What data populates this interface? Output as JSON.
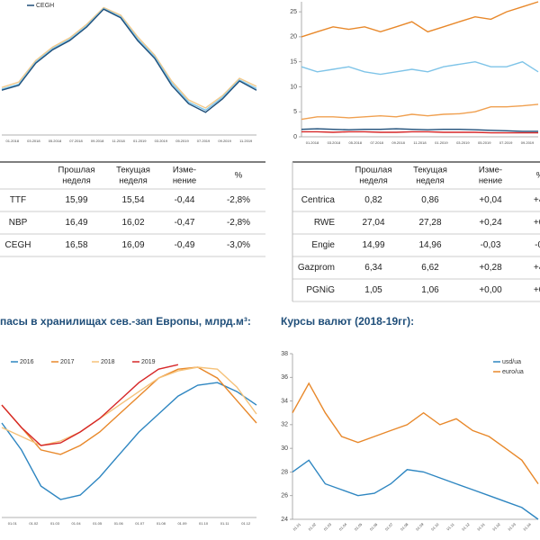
{
  "chart_data": [
    {
      "type": "line",
      "ylim": [
        5,
        30
      ],
      "xtick_labels": [
        "01.2018",
        "03.2018",
        "05.2018",
        "07.2018",
        "09.2018",
        "11.2018",
        "01.2019",
        "03.2019",
        "05.2019",
        "07.2019",
        "09.2019",
        "11.2019"
      ],
      "series": [
        {
          "color": "#f2c98a",
          "values": [
            13.8,
            14.8,
            18.8,
            21.3,
            23,
            25.5,
            28.6,
            27.2,
            23.2,
            19.8,
            15,
            11.5,
            10,
            12.3,
            15.5,
            14
          ]
        },
        {
          "color": "#7fc4e8",
          "values": [
            13.5,
            14.4,
            18.5,
            21,
            22.7,
            25.2,
            28.4,
            26.9,
            22.8,
            19.5,
            14.6,
            11.1,
            9.6,
            12,
            15.2,
            13.6
          ]
        },
        {
          "name": "CEGH",
          "color": "#1f4e79",
          "values": [
            13.3,
            14.2,
            18.3,
            20.8,
            22.5,
            25,
            28.3,
            26.7,
            22.5,
            19.2,
            14.2,
            10.8,
            9.2,
            11.7,
            15,
            13.3
          ]
        }
      ]
    },
    {
      "type": "line",
      "ylim": [
        0,
        27
      ],
      "yticks": [
        0,
        5,
        10,
        15,
        20,
        25
      ],
      "xtick_labels": [
        "01.2018",
        "03.2018",
        "05.2018",
        "07.2018",
        "09.2018",
        "11.2018",
        "01.2019",
        "03.2019",
        "05.2019",
        "07.2019",
        "09.2019"
      ],
      "series": [
        {
          "color": "#e8882a",
          "values": [
            20,
            21,
            22,
            21.5,
            22,
            21,
            22,
            23,
            21,
            22,
            23,
            24,
            23.5,
            25,
            26,
            27
          ]
        },
        {
          "color": "#7fc4e8",
          "values": [
            14,
            13,
            13.5,
            14,
            13,
            12.5,
            13,
            13.5,
            13,
            14,
            14.5,
            15,
            14,
            14,
            15,
            13
          ]
        },
        {
          "color": "#f0a050",
          "values": [
            3.5,
            4,
            4,
            3.8,
            4,
            4.2,
            4,
            4.5,
            4.2,
            4.5,
            4.6,
            5,
            6,
            6,
            6.2,
            6.5
          ]
        },
        {
          "color": "#1f4e79",
          "values": [
            1.5,
            1.6,
            1.5,
            1.4,
            1.5,
            1.5,
            1.6,
            1.5,
            1.4,
            1.5,
            1.5,
            1.4,
            1.3,
            1.2,
            1.1,
            1.1
          ]
        },
        {
          "color": "#d62728",
          "values": [
            1,
            1,
            0.9,
            1,
            1,
            0.9,
            0.9,
            1,
            1,
            0.9,
            0.9,
            0.9,
            0.8,
            0.8,
            0.8,
            0.8
          ]
        }
      ]
    },
    {
      "type": "line",
      "title": "пасы в хранилищах сев.-зап Европы, млрд.м³:",
      "ylim": [
        20,
        100
      ],
      "xtick_labels": [
        "01.01",
        "01.02",
        "01.03",
        "01.04",
        "01.05",
        "01.06",
        "01.07",
        "01.08",
        "01.09",
        "01.10",
        "01.11",
        "01.12"
      ],
      "series": [
        {
          "name": "2016",
          "color": "#2e86c1",
          "values": [
            64.2,
            51.6,
            34.7,
            28.4,
            30.5,
            38.9,
            49.5,
            60,
            68.4,
            76.8,
            81.9,
            83.1,
            78.9,
            72.6
          ]
        },
        {
          "name": "2017",
          "color": "#e8882a",
          "values": [
            72.6,
            62.1,
            51.6,
            49.5,
            53.7,
            60,
            68.4,
            76.8,
            85.2,
            89.4,
            90.3,
            85.2,
            74.7,
            64.2
          ]
        },
        {
          "name": "2018",
          "color": "#f5c27a",
          "values": [
            62.1,
            57.9,
            53.7,
            55.8,
            60,
            66.3,
            72.6,
            78.9,
            85.2,
            88.6,
            90.3,
            89.4,
            81,
            68.4
          ]
        },
        {
          "name": "2019",
          "color": "#d62728",
          "values": [
            72.6,
            62.1,
            53.7,
            54.9,
            60,
            66.3,
            74.7,
            83.1,
            89.4,
            91.5,
            null,
            null,
            null,
            null
          ]
        }
      ]
    },
    {
      "type": "line",
      "title": "Курсы валют (2018-19гг):",
      "ylim": [
        24,
        38
      ],
      "yticks": [
        24,
        26,
        28,
        30,
        32,
        34,
        36,
        38
      ],
      "xtick_labels": [
        "01.01",
        "01.02",
        "01.03",
        "01.04",
        "01.05",
        "01.06",
        "01.07",
        "01.08",
        "01.09",
        "01.10",
        "01.11",
        "01.12",
        "01.01",
        "01.02",
        "01.03",
        "01.04"
      ],
      "series": [
        {
          "name": "usd/ua",
          "color": "#2e86c1",
          "values": [
            28,
            29,
            27,
            26.5,
            26,
            26.2,
            27,
            28.2,
            28,
            27.5,
            27,
            26.5,
            26,
            25.5,
            25,
            24
          ]
        },
        {
          "name": "euro/ua",
          "color": "#e8882a",
          "values": [
            33,
            35.5,
            33,
            31,
            30.5,
            31,
            31.5,
            32,
            33,
            32,
            32.5,
            31.5,
            31,
            30,
            29,
            27
          ]
        }
      ]
    }
  ],
  "tables": [
    {
      "header": [
        [
          "Прошлая",
          "неделя"
        ],
        [
          "Текущая",
          "неделя"
        ],
        [
          "Изме-",
          "нение"
        ],
        [
          "%"
        ]
      ],
      "rows": [
        [
          "TTF",
          "15,99",
          "15,54",
          "-0,44",
          "-2,8%"
        ],
        [
          "NBP",
          "16,49",
          "16,02",
          "-0,47",
          "-2,8%"
        ],
        [
          "CEGH",
          "16,58",
          "16,09",
          "-0,49",
          "-3,0%"
        ]
      ]
    },
    {
      "header": [
        [
          "Прошлая",
          "неделя"
        ],
        [
          "Текущая",
          "неделя"
        ],
        [
          "Изме-",
          "нение"
        ],
        [
          "%"
        ]
      ],
      "rows": [
        [
          "Centrica",
          "0,82",
          "0,86",
          "+0,04",
          "+4,"
        ],
        [
          "RWE",
          "27,04",
          "27,28",
          "+0,24",
          "+0,"
        ],
        [
          "Engie",
          "14,99",
          "14,96",
          "-0,03",
          "-0,"
        ],
        [
          "Gazprom",
          "6,34",
          "6,62",
          "+0,28",
          "+4,"
        ],
        [
          "PGNiG",
          "1,05",
          "1,06",
          "+0,00",
          "+0,"
        ]
      ]
    }
  ]
}
